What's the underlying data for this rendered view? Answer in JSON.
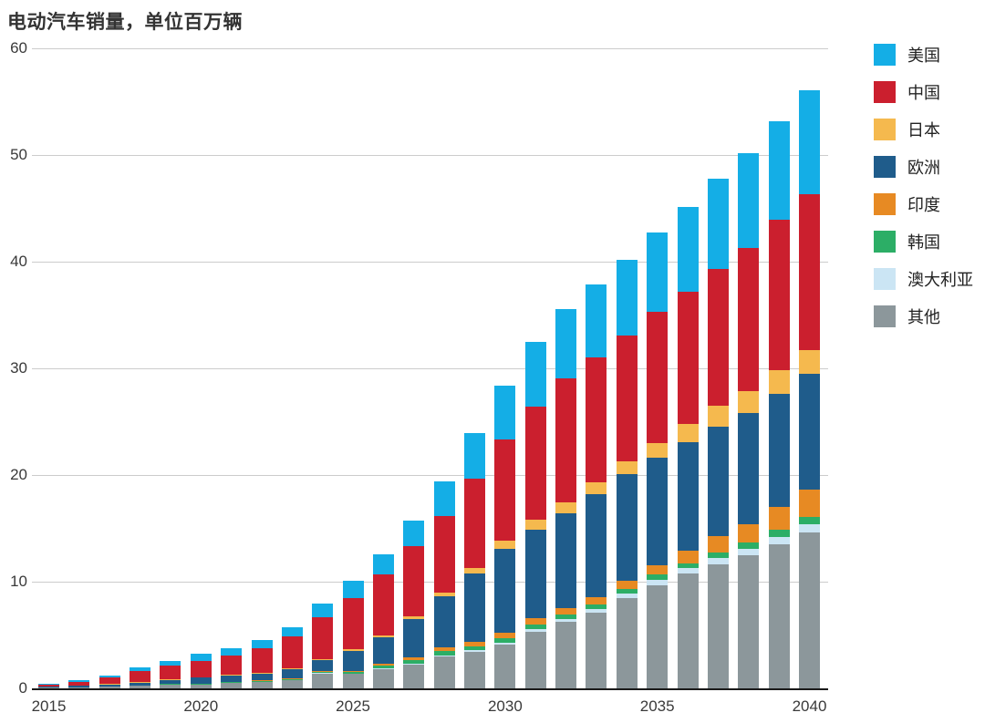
{
  "title": "电动汽车销量，单位百万辆",
  "chart_data": {
    "type": "bar",
    "stacked": true,
    "title": "电动汽车销量，单位百万辆",
    "unit": "百万辆",
    "grid": "horizontal",
    "legend_position": "right",
    "ylim": [
      0,
      60
    ],
    "y_ticks": [
      0,
      10,
      20,
      30,
      40,
      50,
      60
    ],
    "categories": [
      2015,
      2016,
      2017,
      2018,
      2019,
      2020,
      2021,
      2022,
      2023,
      2024,
      2025,
      2026,
      2027,
      2028,
      2029,
      2030,
      2031,
      2032,
      2033,
      2034,
      2035,
      2036,
      2037,
      2038,
      2039,
      2040
    ],
    "x_tick_labels": [
      2015,
      2020,
      2025,
      2030,
      2035,
      2040
    ],
    "stack_order_bottom_to_top": [
      "其他",
      "澳大利亚",
      "韩国",
      "印度",
      "欧洲",
      "日本",
      "中国",
      "美国"
    ],
    "series": [
      {
        "name": "美国",
        "slug": "usa",
        "color": "#14AEE6",
        "values": [
          0.1,
          0.15,
          0.2,
          0.35,
          0.4,
          0.7,
          0.7,
          0.75,
          0.85,
          1.3,
          1.55,
          1.9,
          2.45,
          3.25,
          4.25,
          5.0,
          6.1,
          6.5,
          6.9,
          7.1,
          7.4,
          7.9,
          8.5,
          8.9,
          9.3,
          9.7
        ]
      },
      {
        "name": "中国",
        "slug": "china",
        "color": "#CB1F2E",
        "values": [
          0.15,
          0.35,
          0.6,
          1.05,
          1.3,
          1.5,
          1.8,
          2.3,
          3.0,
          3.9,
          4.85,
          5.7,
          6.55,
          7.2,
          8.45,
          9.55,
          10.6,
          11.7,
          11.7,
          11.8,
          12.3,
          12.4,
          12.8,
          13.4,
          14.1,
          14.6
        ]
      },
      {
        "name": "日本",
        "slug": "japan",
        "color": "#F5B94E",
        "values": [
          0.02,
          0.02,
          0.03,
          0.05,
          0.05,
          0.06,
          0.07,
          0.08,
          0.09,
          0.1,
          0.12,
          0.2,
          0.25,
          0.3,
          0.5,
          0.75,
          0.9,
          0.95,
          1.05,
          1.25,
          1.4,
          1.7,
          1.95,
          2.1,
          2.2,
          2.3
        ]
      },
      {
        "name": "欧洲",
        "slug": "europe",
        "color": "#1F5C8B",
        "values": [
          0.08,
          0.12,
          0.18,
          0.25,
          0.35,
          0.55,
          0.6,
          0.65,
          0.9,
          1.05,
          1.9,
          2.45,
          3.6,
          4.8,
          6.35,
          7.85,
          8.35,
          8.9,
          9.7,
          9.95,
          10.05,
          10.15,
          10.3,
          10.4,
          10.6,
          10.8
        ]
      },
      {
        "name": "印度",
        "slug": "india",
        "color": "#E78A23",
        "values": [
          0.01,
          0.01,
          0.02,
          0.02,
          0.03,
          0.03,
          0.04,
          0.05,
          0.06,
          0.08,
          0.1,
          0.2,
          0.25,
          0.35,
          0.45,
          0.5,
          0.55,
          0.6,
          0.65,
          0.75,
          0.9,
          1.2,
          1.5,
          1.7,
          2.1,
          2.55
        ]
      },
      {
        "name": "韩国",
        "slug": "south-korea",
        "color": "#2CAE66",
        "values": [
          0.01,
          0.02,
          0.02,
          0.03,
          0.04,
          0.05,
          0.06,
          0.07,
          0.09,
          0.12,
          0.15,
          0.25,
          0.35,
          0.4,
          0.4,
          0.42,
          0.45,
          0.45,
          0.45,
          0.45,
          0.5,
          0.5,
          0.55,
          0.6,
          0.7,
          0.75
        ]
      },
      {
        "name": "澳大利亚",
        "slug": "australia",
        "color": "#CBE5F4",
        "values": [
          0.01,
          0.01,
          0.01,
          0.01,
          0.01,
          0.02,
          0.02,
          0.02,
          0.03,
          0.03,
          0.04,
          0.05,
          0.1,
          0.12,
          0.15,
          0.2,
          0.25,
          0.3,
          0.35,
          0.4,
          0.45,
          0.5,
          0.55,
          0.6,
          0.7,
          0.75
        ]
      },
      {
        "name": "其他",
        "slug": "other",
        "color": "#8C979B",
        "values": [
          0.05,
          0.08,
          0.14,
          0.24,
          0.37,
          0.35,
          0.5,
          0.6,
          0.75,
          1.4,
          1.35,
          1.8,
          2.2,
          3.0,
          3.4,
          4.1,
          5.3,
          6.2,
          7.1,
          8.5,
          9.7,
          10.75,
          11.65,
          12.5,
          13.5,
          14.6
        ]
      }
    ],
    "axis_colors": {
      "gridline": "#cccccc",
      "baseline": "#1a1a1a",
      "tick_text": "#3a3a3a"
    }
  }
}
